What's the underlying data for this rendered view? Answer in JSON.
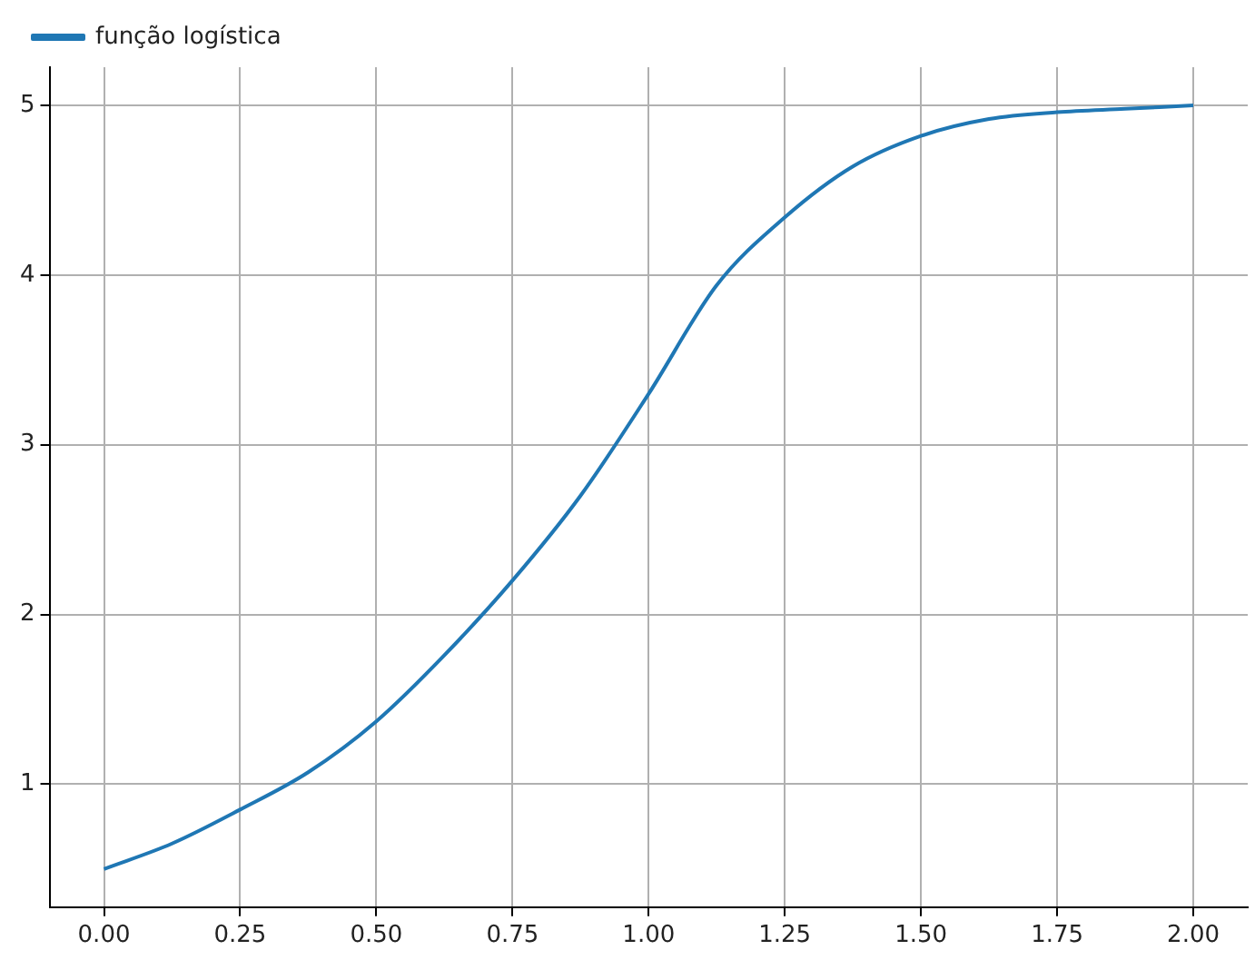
{
  "chart_data": {
    "type": "line",
    "x": [
      0,
      0.125,
      0.25,
      0.375,
      0.5,
      0.625,
      0.75,
      0.875,
      1.0,
      1.125,
      1.25,
      1.375,
      1.5,
      1.625,
      1.75,
      1.875,
      2.0
    ],
    "series": [
      {
        "name": "função logística",
        "color": "#1f77b4",
        "values": [
          0.5,
          0.65,
          0.85,
          1.07,
          1.37,
          1.76,
          2.2,
          2.7,
          3.3,
          3.94,
          4.34,
          4.64,
          4.82,
          4.92,
          4.96,
          4.98,
          5.0
        ]
      }
    ],
    "xlim": [
      -0.1,
      2.1
    ],
    "ylim": [
      0.275,
      5.225
    ],
    "xticks": [
      {
        "value": 0,
        "label": "0.00"
      },
      {
        "value": 0.25,
        "label": "0.25"
      },
      {
        "value": 0.5,
        "label": "0.50"
      },
      {
        "value": 0.75,
        "label": "0.75"
      },
      {
        "value": 1,
        "label": "1.00"
      },
      {
        "value": 1.25,
        "label": "1.25"
      },
      {
        "value": 1.5,
        "label": "1.50"
      },
      {
        "value": 1.75,
        "label": "1.75"
      },
      {
        "value": 2,
        "label": "2.00"
      }
    ],
    "yticks": [
      1,
      2,
      3,
      4,
      5
    ],
    "grid": true,
    "legend": "top left",
    "marker": "none",
    "line_style": "solid"
  }
}
